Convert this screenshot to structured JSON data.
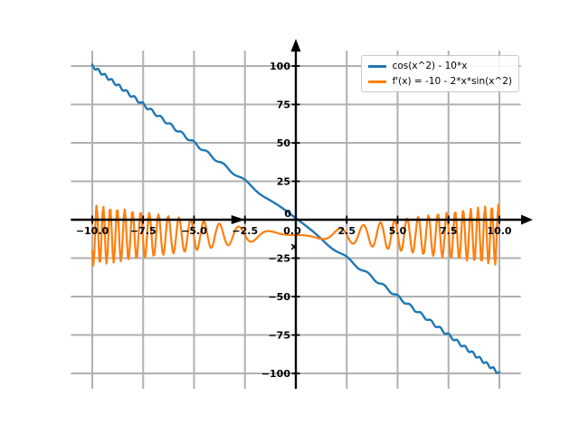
{
  "figure": {
    "background": "#ffffff",
    "grid_color": "#b0b0b0",
    "axis_color": "#000000",
    "tick_label_color": "#000000"
  },
  "chart_data": {
    "type": "line",
    "title": "",
    "xlabel": "x",
    "ylabel": "",
    "grid": true,
    "legend_position": "upper-right",
    "xlim": [
      -11.05,
      11.05
    ],
    "ylim": [
      -110,
      110
    ],
    "x_ticks": [
      {
        "value": -10,
        "label": "−10.0"
      },
      {
        "value": -7.5,
        "label": "−7.5"
      },
      {
        "value": -5,
        "label": "−5.0"
      },
      {
        "value": -2.5,
        "label": "−2.5"
      },
      {
        "value": 0,
        "label": "0.0"
      },
      {
        "value": 2.5,
        "label": "2.5"
      },
      {
        "value": 5,
        "label": "5.0"
      },
      {
        "value": 7.5,
        "label": "7.5"
      },
      {
        "value": 10,
        "label": "10.0"
      }
    ],
    "y_ticks": [
      {
        "value": 100,
        "label": "100"
      },
      {
        "value": 75,
        "label": "75"
      },
      {
        "value": 50,
        "label": "50"
      },
      {
        "value": 25,
        "label": "25"
      },
      {
        "value": 0,
        "label": "0"
      },
      {
        "value": -25,
        "label": "−25"
      },
      {
        "value": -50,
        "label": "−50"
      },
      {
        "value": -75,
        "label": "−75"
      },
      {
        "value": -100,
        "label": "−100"
      }
    ],
    "series": [
      {
        "name": "cos(x^2) - 10*x",
        "expr": "cos(x^2) - 10*x",
        "color": "#1f77b4",
        "x_min": -10,
        "x_max": 10,
        "n_points": 401,
        "linewidth": 2.4
      },
      {
        "name": "f'(x) = -10 - 2*x*sin(x^2)",
        "expr": "-10 - 2*x*sin(x^2)",
        "color": "#ff7f0e",
        "x_min": -10,
        "x_max": 10,
        "n_points": 401,
        "linewidth": 2.2
      }
    ],
    "annotations": [
      {
        "type": "marker-arrow-right",
        "x": -2.5,
        "y": 0,
        "color": "#000000"
      },
      {
        "type": "text",
        "x": -0.1,
        "y": -17,
        "text": "x",
        "color": "#000000"
      }
    ]
  },
  "legend": {
    "items": [
      {
        "label": "cos(x^2) - 10*x",
        "color": "#1f77b4"
      },
      {
        "label": "f'(x) = -10 - 2*x*sin(x^2)",
        "color": "#ff7f0e"
      }
    ]
  }
}
